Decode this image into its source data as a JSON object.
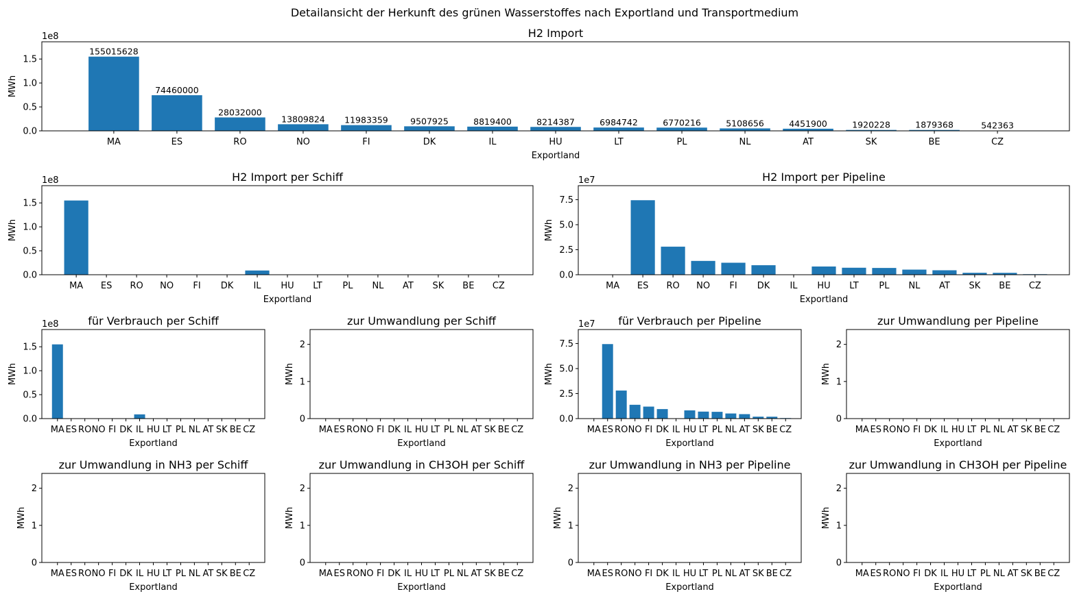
{
  "figure_title": "Detailansicht der Herkunft des grünen Wasserstoffes nach Exportland und Transportmedium",
  "colors": {
    "bar": "#1f77b4"
  },
  "chart_data": [
    {
      "id": "import-total",
      "type": "bar",
      "title": "H2 Import",
      "xlabel": "Exportland",
      "ylabel": "MWh",
      "scale_label": "1e8",
      "categories": [
        "MA",
        "ES",
        "RO",
        "NO",
        "FI",
        "DK",
        "IL",
        "HU",
        "LT",
        "PL",
        "NL",
        "AT",
        "SK",
        "BE",
        "CZ"
      ],
      "values": [
        155015628,
        74460000,
        28032000,
        13809824,
        11983359,
        9507925,
        8819400,
        8214387,
        6984742,
        6770216,
        5108656,
        4451900,
        1920228,
        1879368,
        542363
      ],
      "data_labels": [
        "155015628",
        "74460000",
        "28032000",
        "13809824",
        "11983359",
        "9507925",
        "8819400",
        "8214387",
        "6984742",
        "6770216",
        "5108656",
        "4451900",
        "1920228",
        "1879368",
        "542363"
      ],
      "ylim": [
        0,
        186000000
      ],
      "yticks": [
        0,
        50000000,
        100000000,
        150000000
      ],
      "ytick_labels": [
        "0.0",
        "0.5",
        "1.0",
        "1.5"
      ],
      "grid": false
    },
    {
      "id": "import-ship",
      "type": "bar",
      "title": "H2 Import per Schiff",
      "xlabel": "Exportland",
      "ylabel": "MWh",
      "scale_label": "1e8",
      "categories": [
        "MA",
        "ES",
        "RO",
        "NO",
        "FI",
        "DK",
        "IL",
        "HU",
        "LT",
        "PL",
        "NL",
        "AT",
        "SK",
        "BE",
        "CZ"
      ],
      "values": [
        155015628,
        0,
        0,
        0,
        0,
        0,
        8819400,
        0,
        0,
        0,
        0,
        0,
        0,
        0,
        0
      ],
      "ylim": [
        0,
        186000000
      ],
      "yticks": [
        0,
        50000000,
        100000000,
        150000000
      ],
      "ytick_labels": [
        "0.0",
        "0.5",
        "1.0",
        "1.5"
      ],
      "grid": false
    },
    {
      "id": "import-pipeline",
      "type": "bar",
      "title": "H2 Import per Pipeline",
      "xlabel": "Exportland",
      "ylabel": "MWh",
      "scale_label": "1e7",
      "categories": [
        "MA",
        "ES",
        "RO",
        "NO",
        "FI",
        "DK",
        "IL",
        "HU",
        "LT",
        "PL",
        "NL",
        "AT",
        "SK",
        "BE",
        "CZ"
      ],
      "values": [
        0,
        74460000,
        28032000,
        13809824,
        11983359,
        9507925,
        0,
        8214387,
        6984742,
        6770216,
        5108656,
        4451900,
        1920228,
        1879368,
        542363
      ],
      "ylim": [
        0,
        89000000
      ],
      "yticks": [
        0,
        25000000,
        50000000,
        75000000
      ],
      "ytick_labels": [
        "0.0",
        "2.5",
        "5.0",
        "7.5"
      ],
      "grid": false
    },
    {
      "id": "ship-consumption",
      "type": "bar",
      "title": "für Verbrauch per Schiff",
      "xlabel": "Exportland",
      "ylabel": "MWh",
      "scale_label": "1e8",
      "categories": [
        "MA",
        "ES",
        "RO",
        "NO",
        "FI",
        "DK",
        "IL",
        "HU",
        "LT",
        "PL",
        "NL",
        "AT",
        "SK",
        "BE",
        "CZ"
      ],
      "values": [
        155015628,
        0,
        0,
        0,
        0,
        0,
        8819400,
        0,
        0,
        0,
        0,
        0,
        0,
        0,
        0
      ],
      "ylim": [
        0,
        186000000
      ],
      "yticks": [
        0,
        50000000,
        100000000,
        150000000
      ],
      "ytick_labels": [
        "0.0",
        "0.5",
        "1.0",
        "1.5"
      ],
      "grid": false
    },
    {
      "id": "ship-conversion",
      "type": "bar",
      "title": "zur Umwandlung per Schiff",
      "xlabel": "Exportland",
      "ylabel": "MWh",
      "scale_label": "",
      "categories": [
        "MA",
        "ES",
        "RO",
        "NO",
        "FI",
        "DK",
        "IL",
        "HU",
        "LT",
        "PL",
        "NL",
        "AT",
        "SK",
        "BE",
        "CZ"
      ],
      "values": [
        0,
        0,
        0,
        0,
        0,
        0,
        0,
        0,
        0,
        0,
        0,
        0,
        0,
        0,
        0
      ],
      "ylim": [
        0,
        2.4
      ],
      "yticks": [
        0,
        1,
        2
      ],
      "ytick_labels": [
        "0",
        "1",
        "2"
      ],
      "grid": false
    },
    {
      "id": "pipeline-consumption",
      "type": "bar",
      "title": "für Verbrauch per Pipeline",
      "xlabel": "Exportland",
      "ylabel": "MWh",
      "scale_label": "1e7",
      "categories": [
        "MA",
        "ES",
        "RO",
        "NO",
        "FI",
        "DK",
        "IL",
        "HU",
        "LT",
        "PL",
        "NL",
        "AT",
        "SK",
        "BE",
        "CZ"
      ],
      "values": [
        0,
        74460000,
        28032000,
        13809824,
        11983359,
        9507925,
        0,
        8214387,
        6984742,
        6770216,
        5108656,
        4451900,
        1920228,
        1879368,
        542363
      ],
      "ylim": [
        0,
        89000000
      ],
      "yticks": [
        0,
        25000000,
        50000000,
        75000000
      ],
      "ytick_labels": [
        "0.0",
        "2.5",
        "5.0",
        "7.5"
      ],
      "grid": false
    },
    {
      "id": "pipeline-conversion",
      "type": "bar",
      "title": "zur Umwandlung per Pipeline",
      "xlabel": "Exportland",
      "ylabel": "MWh",
      "scale_label": "",
      "categories": [
        "MA",
        "ES",
        "RO",
        "NO",
        "FI",
        "DK",
        "IL",
        "HU",
        "LT",
        "PL",
        "NL",
        "AT",
        "SK",
        "BE",
        "CZ"
      ],
      "values": [
        0,
        0,
        0,
        0,
        0,
        0,
        0,
        0,
        0,
        0,
        0,
        0,
        0,
        0,
        0
      ],
      "ylim": [
        0,
        2.4
      ],
      "yticks": [
        0,
        1,
        2
      ],
      "ytick_labels": [
        "0",
        "1",
        "2"
      ],
      "grid": false
    },
    {
      "id": "ship-nh3",
      "type": "bar",
      "title": "zur Umwandlung in NH3 per Schiff",
      "xlabel": "Exportland",
      "ylabel": "MWh",
      "scale_label": "",
      "categories": [
        "MA",
        "ES",
        "RO",
        "NO",
        "FI",
        "DK",
        "IL",
        "HU",
        "LT",
        "PL",
        "NL",
        "AT",
        "SK",
        "BE",
        "CZ"
      ],
      "values": [
        0,
        0,
        0,
        0,
        0,
        0,
        0,
        0,
        0,
        0,
        0,
        0,
        0,
        0,
        0
      ],
      "ylim": [
        0,
        2.4
      ],
      "yticks": [
        0,
        1,
        2
      ],
      "ytick_labels": [
        "0",
        "1",
        "2"
      ],
      "grid": false
    },
    {
      "id": "ship-ch3oh",
      "type": "bar",
      "title": "zur Umwandlung in CH3OH per Schiff",
      "xlabel": "Exportland",
      "ylabel": "MWh",
      "scale_label": "",
      "categories": [
        "MA",
        "ES",
        "RO",
        "NO",
        "FI",
        "DK",
        "IL",
        "HU",
        "LT",
        "PL",
        "NL",
        "AT",
        "SK",
        "BE",
        "CZ"
      ],
      "values": [
        0,
        0,
        0,
        0,
        0,
        0,
        0,
        0,
        0,
        0,
        0,
        0,
        0,
        0,
        0
      ],
      "ylim": [
        0,
        2.4
      ],
      "yticks": [
        0,
        1,
        2
      ],
      "ytick_labels": [
        "0",
        "1",
        "2"
      ],
      "grid": false
    },
    {
      "id": "pipeline-nh3",
      "type": "bar",
      "title": "zur Umwandlung in NH3 per Pipeline",
      "xlabel": "Exportland",
      "ylabel": "MWh",
      "scale_label": "",
      "categories": [
        "MA",
        "ES",
        "RO",
        "NO",
        "FI",
        "DK",
        "IL",
        "HU",
        "LT",
        "PL",
        "NL",
        "AT",
        "SK",
        "BE",
        "CZ"
      ],
      "values": [
        0,
        0,
        0,
        0,
        0,
        0,
        0,
        0,
        0,
        0,
        0,
        0,
        0,
        0,
        0
      ],
      "ylim": [
        0,
        2.4
      ],
      "yticks": [
        0,
        1,
        2
      ],
      "ytick_labels": [
        "0",
        "1",
        "2"
      ],
      "grid": false
    },
    {
      "id": "pipeline-ch3oh",
      "type": "bar",
      "title": "zur Umwandlung in CH3OH per Pipeline",
      "xlabel": "Exportland",
      "ylabel": "MWh",
      "scale_label": "",
      "categories": [
        "MA",
        "ES",
        "RO",
        "NO",
        "FI",
        "DK",
        "IL",
        "HU",
        "LT",
        "PL",
        "NL",
        "AT",
        "SK",
        "BE",
        "CZ"
      ],
      "values": [
        0,
        0,
        0,
        0,
        0,
        0,
        0,
        0,
        0,
        0,
        0,
        0,
        0,
        0,
        0
      ],
      "ylim": [
        0,
        2.4
      ],
      "yticks": [
        0,
        1,
        2
      ],
      "ytick_labels": [
        "0",
        "1",
        "2"
      ],
      "grid": false
    }
  ]
}
